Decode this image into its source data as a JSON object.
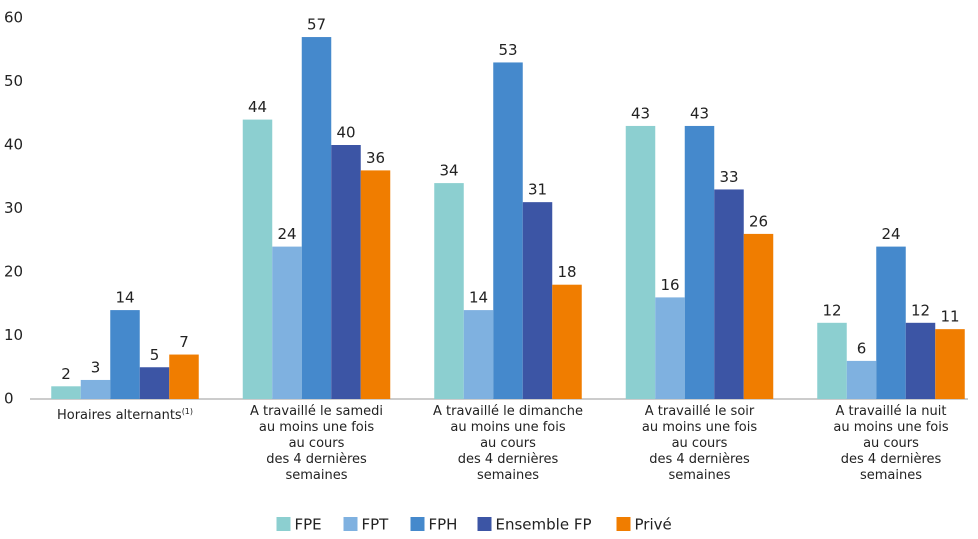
{
  "chart_data": {
    "type": "bar",
    "categories": [
      "Horaires alternants",
      "A travaillé le samedi\nau moins une fois\nau cours\ndes 4 dernières\nsemaines",
      "A travaillé le dimanche\nau moins une fois\nau cours\ndes 4 dernières\nsemaines",
      "A travaillé le soir\nau moins une fois\nau cours\ndes 4 dernières\nsemaines",
      "A travaillé la nuit\nau moins une fois\nau cours\ndes 4 dernières\nsemaines"
    ],
    "category_note": "(1)",
    "series": [
      {
        "name": "FPE",
        "color": "#8ccfd0",
        "values": [
          2,
          44,
          34,
          43,
          12
        ]
      },
      {
        "name": "FPT",
        "color": "#7fb1e0",
        "values": [
          3,
          24,
          14,
          16,
          6
        ]
      },
      {
        "name": "FPH",
        "color": "#4589cc",
        "values": [
          14,
          57,
          53,
          43,
          24
        ]
      },
      {
        "name": "Ensemble FP",
        "color": "#3c55a5",
        "values": [
          5,
          40,
          31,
          33,
          12
        ]
      },
      {
        "name": "Privé",
        "color": "#f07d00",
        "values": [
          7,
          36,
          18,
          26,
          11
        ]
      }
    ],
    "ylim": [
      0,
      60
    ],
    "yticks": [
      0,
      10,
      20,
      30,
      40,
      50,
      60
    ],
    "grid": false,
    "legend": "bottom"
  }
}
